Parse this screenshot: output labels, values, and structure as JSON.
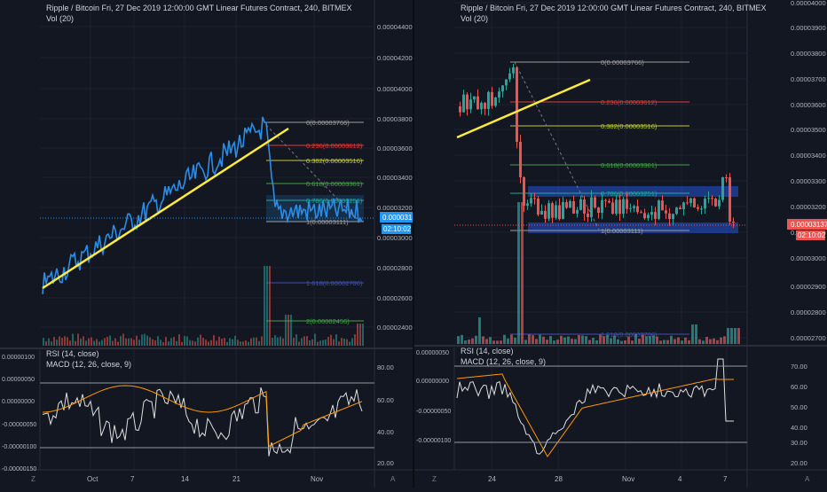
{
  "left_chart": {
    "title": "Ripple / Bitcoin Fri, 27 Dec 2019 12:00:00 GMT Linear Futures Contract, 240, BITMEX",
    "vol_label": "Vol (20)",
    "rsi_label": "RSI (14, close)",
    "macd_label": "MACD (12, 26, close, 9)",
    "price_ticks": [
      "0.00004400",
      "0.00004200",
      "0.00004000",
      "0.00003800",
      "0.00003600",
      "0.00003400",
      "0.00003200",
      "0.00003000",
      "0.00002800",
      "0.00002600",
      "0.00002400"
    ],
    "rsi_ticks": [
      "80.00",
      "60.00",
      "40.00",
      "20.00"
    ],
    "macd_ticks": [
      "0.00000100",
      "0.00000050",
      "0.00000000",
      "-0.00000050",
      "-0.00000100",
      "-0.00000150"
    ],
    "x_ticks": [
      "Oct",
      "7",
      "14",
      "21",
      "Nov"
    ],
    "fib_levels": [
      {
        "label": "0(0.00003766)",
        "color": "#9e9e9e"
      },
      {
        "label": "0.236(0.00003612)",
        "color": "#e53935"
      },
      {
        "label": "0.382(0.00003516)",
        "color": "#c0ca33"
      },
      {
        "label": "0.618(0.00003361)",
        "color": "#43a047"
      },
      {
        "label": "0.786(0.00003251)",
        "color": "#26a69a"
      },
      {
        "label": "1(0.00003111)",
        "color": "#9e9e9e"
      },
      {
        "label": "1.618(0.00002706)",
        "color": "#3f51b5"
      },
      {
        "label": "2(0.00002456)",
        "color": "#43a047"
      }
    ],
    "last_price": "0.00003137",
    "countdown": "02:10:02",
    "price_badge_color": "#2196f3",
    "line_color": "#2a8ee8",
    "trendline_color": "#ffeb3b",
    "z_label": "Z",
    "a_label": "A"
  },
  "right_chart": {
    "title": "Ripple / Bitcoin Fri, 27 Dec 2019 12:00:00 GMT Linear Futures Contract, 240, BITMEX",
    "vol_label": "Vol (20)",
    "rsi_label": "RSI (14, close)",
    "macd_label": "MACD (12, 26, close, 9)",
    "price_ticks": [
      "0.00004000",
      "0.00003900",
      "0.00003800",
      "0.00003700",
      "0.00003600",
      "0.00003500",
      "0.00003400",
      "0.00003300",
      "0.00003200",
      "0.00003100",
      "0.00003000",
      "0.00002900",
      "0.00002800",
      "0.00002700"
    ],
    "rsi_ticks": [
      "70.00",
      "60.00",
      "50.00",
      "40.00",
      "30.00",
      "20.00"
    ],
    "macd_ticks": [
      "0.00000050",
      "0.00000000",
      "-0.00000050",
      "-0.00000100"
    ],
    "x_ticks": [
      "24",
      "28",
      "Nov",
      "4",
      "7"
    ],
    "fib_levels": [
      {
        "label": "0(0.00003766)",
        "color": "#9e9e9e"
      },
      {
        "label": "0.236(0.00003612)",
        "color": "#e53935"
      },
      {
        "label": "0.382(0.00003516)",
        "color": "#c0ca33"
      },
      {
        "label": "0.618(0.00003361)",
        "color": "#43a047"
      },
      {
        "label": "0.786(0.00003251)",
        "color": "#26a69a"
      },
      {
        "label": "1(0.00003111)",
        "color": "#9e9e9e"
      },
      {
        "label": "1.618(0.00002706)",
        "color": "#3f51b5"
      }
    ],
    "last_price": "0.00003137",
    "countdown": "02:10:02",
    "price_badge_color": "#ef5350",
    "up_color": "#26a69a",
    "down_color": "#ef5350",
    "trendline_color": "#ffeb3b",
    "z_label": "Z",
    "a_label": "A"
  }
}
